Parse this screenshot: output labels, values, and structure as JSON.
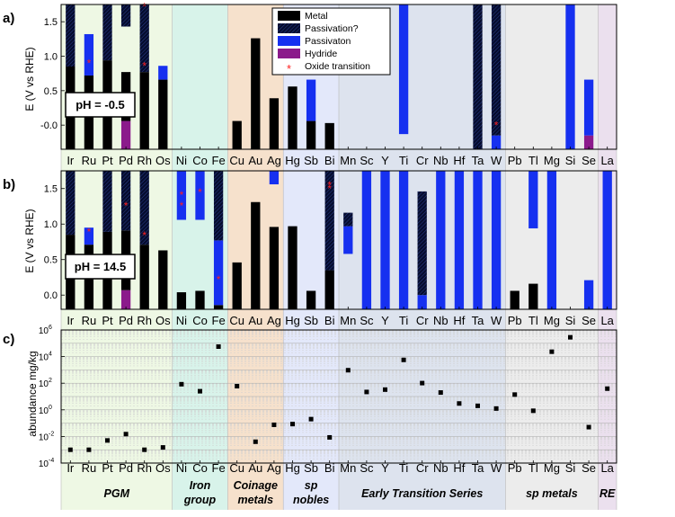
{
  "elements": [
    "Ir",
    "Ru",
    "Pt",
    "Pd",
    "Rh",
    "Os",
    "Ni",
    "Co",
    "Fe",
    "Cu",
    "Au",
    "Ag",
    "Hg",
    "Sb",
    "Bi",
    "Mn",
    "Sc",
    "Y",
    "Ti",
    "Cr",
    "Nb",
    "Hf",
    "Ta",
    "W",
    "Pb",
    "Tl",
    "Mg",
    "Si",
    "Se",
    "La"
  ],
  "groups": [
    {
      "name": "PGM",
      "first": 0,
      "last": 5,
      "color": "#eef8e4"
    },
    {
      "name": "Iron group",
      "first": 6,
      "last": 8,
      "color": "#d8f3ea"
    },
    {
      "name": "Coinage metals",
      "first": 9,
      "last": 11,
      "color": "#f6e1cc"
    },
    {
      "name": "sp nobles",
      "first": 12,
      "last": 14,
      "color": "#e3e8fa"
    },
    {
      "name": "Early Transition Series",
      "first": 15,
      "last": 23,
      "color": "#dde3ee"
    },
    {
      "name": "sp metals",
      "first": 24,
      "last": 28,
      "color": "#ececec"
    },
    {
      "name": "RE",
      "first": 29,
      "last": 29,
      "color": "#ebe0ee"
    }
  ],
  "legend": {
    "metal": "Metal",
    "passivation_q": "Passivation?",
    "passivation": "Passivaton",
    "hydride": "Hydride",
    "oxide": "Oxide transition"
  },
  "colors": {
    "metal": "#000000",
    "passivation_q": "#0a1a5a",
    "passivation": "#1630f0",
    "hydride": "#8b1a8b",
    "oxide": "#ff2020"
  },
  "chart_data": [
    {
      "panel": "a)",
      "type": "bar",
      "ylabel": "E (V vs RHE)",
      "annotation": "pH = -0.5",
      "ylim": [
        -0.35,
        1.75
      ],
      "yticks": [
        "-0.0",
        "0.5",
        "1.0",
        "1.5"
      ],
      "bars": {
        "Ir": [
          [
            "metal",
            -0.35,
            0.85
          ],
          [
            "passivation_q",
            0.85,
            1.75
          ]
        ],
        "Ru": [
          [
            "metal",
            -0.35,
            0.72
          ],
          [
            "passivation",
            0.72,
            1.32
          ]
        ],
        "Pt": [
          [
            "metal",
            -0.35,
            0.94
          ],
          [
            "passivation_q",
            0.94,
            1.75
          ]
        ],
        "Pd": [
          [
            "hydride",
            -0.35,
            0.06
          ],
          [
            "metal",
            0.06,
            0.77
          ],
          [
            "passivation_q",
            1.43,
            1.75
          ]
        ],
        "Rh": [
          [
            "metal",
            -0.35,
            0.77
          ],
          [
            "passivation_q",
            0.77,
            1.75
          ]
        ],
        "Os": [
          [
            "metal",
            -0.35,
            0.66
          ],
          [
            "passivation",
            0.66,
            0.86
          ]
        ],
        "Cu": [
          [
            "metal",
            -0.35,
            0.06
          ]
        ],
        "Au": [
          [
            "metal",
            -0.35,
            1.26
          ]
        ],
        "Ag": [
          [
            "metal",
            -0.35,
            0.39
          ]
        ],
        "Hg": [
          [
            "metal",
            -0.35,
            0.56
          ]
        ],
        "Sb": [
          [
            "metal",
            -0.35,
            0.06
          ],
          [
            "passivation",
            0.06,
            0.66
          ]
        ],
        "Bi": [
          [
            "metal",
            -0.35,
            0.03
          ]
        ],
        "Ti": [
          [
            "passivation",
            -0.13,
            1.75
          ]
        ],
        "Ta": [
          [
            "passivation_q",
            -0.35,
            1.75
          ]
        ],
        "W": [
          [
            "passivation",
            -0.35,
            -0.15
          ],
          [
            "passivation_q",
            -0.15,
            1.75
          ]
        ],
        "Si": [
          [
            "passivation",
            -0.35,
            1.75
          ]
        ],
        "Se": [
          [
            "hydride",
            -0.35,
            -0.15
          ],
          [
            "passivation",
            -0.15,
            0.66
          ]
        ]
      },
      "oxide_transitions": [
        [
          "Ru",
          0.91
        ],
        [
          "Rh",
          1.73
        ],
        [
          "Rh",
          0.87
        ],
        [
          "W",
          0.01
        ]
      ]
    },
    {
      "panel": "b)",
      "type": "bar",
      "ylabel": "E (V vs RHE)",
      "annotation": "pH = 14.5",
      "ylim": [
        -0.2,
        1.75
      ],
      "yticks": [
        "0.0",
        "0.5",
        "1.0",
        "1.5"
      ],
      "bars": {
        "Ir": [
          [
            "metal",
            -0.2,
            0.85
          ],
          [
            "passivation_q",
            0.85,
            1.75
          ]
        ],
        "Ru": [
          [
            "metal",
            -0.2,
            0.71
          ],
          [
            "passivation",
            0.71,
            0.95
          ]
        ],
        "Pt": [
          [
            "metal",
            -0.2,
            0.89
          ],
          [
            "passivation_q",
            0.89,
            1.75
          ]
        ],
        "Pd": [
          [
            "hydride",
            -0.2,
            0.07
          ],
          [
            "metal",
            0.07,
            0.91
          ],
          [
            "passivation_q",
            0.91,
            1.75
          ]
        ],
        "Rh": [
          [
            "metal",
            -0.2,
            0.71
          ],
          [
            "passivation_q",
            0.71,
            1.75
          ]
        ],
        "Os": [
          [
            "metal",
            -0.2,
            0.63
          ]
        ],
        "Ni": [
          [
            "metal",
            -0.2,
            0.04
          ],
          [
            "passivation",
            1.06,
            1.75
          ]
        ],
        "Co": [
          [
            "metal",
            -0.2,
            0.06
          ],
          [
            "passivation",
            1.06,
            1.75
          ]
        ],
        "Fe": [
          [
            "metal",
            -0.2,
            -0.14
          ],
          [
            "passivation",
            -0.14,
            0.77
          ],
          [
            "passivation_q",
            0.77,
            1.75
          ]
        ],
        "Cu": [
          [
            "metal",
            -0.2,
            0.46
          ]
        ],
        "Au": [
          [
            "metal",
            -0.2,
            1.31
          ]
        ],
        "Ag": [
          [
            "metal",
            -0.2,
            0.96
          ],
          [
            "passivation",
            1.56,
            1.75
          ]
        ],
        "Hg": [
          [
            "metal",
            -0.2,
            0.97
          ]
        ],
        "Sb": [
          [
            "metal",
            -0.2,
            0.06
          ]
        ],
        "Bi": [
          [
            "metal",
            -0.2,
            0.35
          ],
          [
            "passivation_q",
            0.35,
            1.75
          ]
        ],
        "Mn": [
          [
            "passivation",
            0.58,
            0.97
          ],
          [
            "passivation_q",
            0.97,
            1.16
          ]
        ],
        "Sc": [
          [
            "passivation",
            -0.2,
            1.75
          ]
        ],
        "Y": [
          [
            "passivation",
            -0.2,
            1.75
          ]
        ],
        "Ti": [
          [
            "passivation",
            -0.2,
            1.75
          ]
        ],
        "Cr": [
          [
            "passivation",
            -0.2,
            0.0
          ],
          [
            "passivation_q",
            0.0,
            1.46
          ]
        ],
        "Nb": [
          [
            "passivation",
            -0.2,
            1.75
          ]
        ],
        "Hf": [
          [
            "passivation",
            -0.2,
            1.75
          ]
        ],
        "Ta": [
          [
            "passivation",
            -0.2,
            1.75
          ]
        ],
        "W": [
          [
            "passivation",
            -0.2,
            1.75
          ]
        ],
        "Pb": [
          [
            "metal",
            -0.2,
            0.06
          ]
        ],
        "Tl": [
          [
            "metal",
            -0.2,
            0.16
          ],
          [
            "passivation",
            0.94,
            1.75
          ]
        ],
        "Mg": [
          [
            "passivation",
            -0.2,
            1.75
          ]
        ],
        "Se": [
          [
            "passivation",
            -0.2,
            0.21
          ]
        ],
        "La": [
          [
            "passivation",
            -0.2,
            1.75
          ]
        ]
      },
      "oxide_transitions": [
        [
          "Ru",
          0.9
        ],
        [
          "Pd",
          1.27
        ],
        [
          "Rh",
          0.85
        ],
        [
          "Ni",
          1.42
        ],
        [
          "Ni",
          1.27
        ],
        [
          "Co",
          1.46
        ],
        [
          "Fe",
          0.23
        ],
        [
          "Bi",
          1.51
        ],
        [
          "Bi",
          1.56
        ]
      ]
    },
    {
      "panel": "c)",
      "type": "scatter",
      "ylabel": "abundance mg/kg",
      "yscale": "log",
      "ylim": [
        0.0001,
        1000000
      ],
      "yticks": [
        {
          "exp": "-4",
          "val": 0.0001
        },
        {
          "exp": "-2",
          "val": 0.01
        },
        {
          "exp": "0",
          "val": 1
        },
        {
          "exp": "2",
          "val": 100
        },
        {
          "exp": "4",
          "val": 10000
        },
        {
          "exp": "6",
          "val": 1000000
        }
      ],
      "points": [
        [
          "Ir",
          0.001
        ],
        [
          "Ru",
          0.001
        ],
        [
          "Pt",
          0.005
        ],
        [
          "Pd",
          0.015
        ],
        [
          "Rh",
          0.001
        ],
        [
          "Os",
          0.0015
        ],
        [
          "Ni",
          84
        ],
        [
          "Co",
          25
        ],
        [
          "Fe",
          56300
        ],
        [
          "Cu",
          60
        ],
        [
          "Au",
          0.004
        ],
        [
          "Ag",
          0.075
        ],
        [
          "Hg",
          0.085
        ],
        [
          "Sb",
          0.2
        ],
        [
          "Bi",
          0.0085
        ],
        [
          "Mn",
          950
        ],
        [
          "Sc",
          22
        ],
        [
          "Y",
          33
        ],
        [
          "Ti",
          5650
        ],
        [
          "Cr",
          102
        ],
        [
          "Nb",
          20
        ],
        [
          "Hf",
          3
        ],
        [
          "Ta",
          2
        ],
        [
          "W",
          1.25
        ],
        [
          "Pb",
          14
        ],
        [
          "Tl",
          0.85
        ],
        [
          "Mg",
          23300
        ],
        [
          "Si",
          282000
        ],
        [
          "Se",
          0.05
        ],
        [
          "La",
          39
        ]
      ]
    }
  ]
}
